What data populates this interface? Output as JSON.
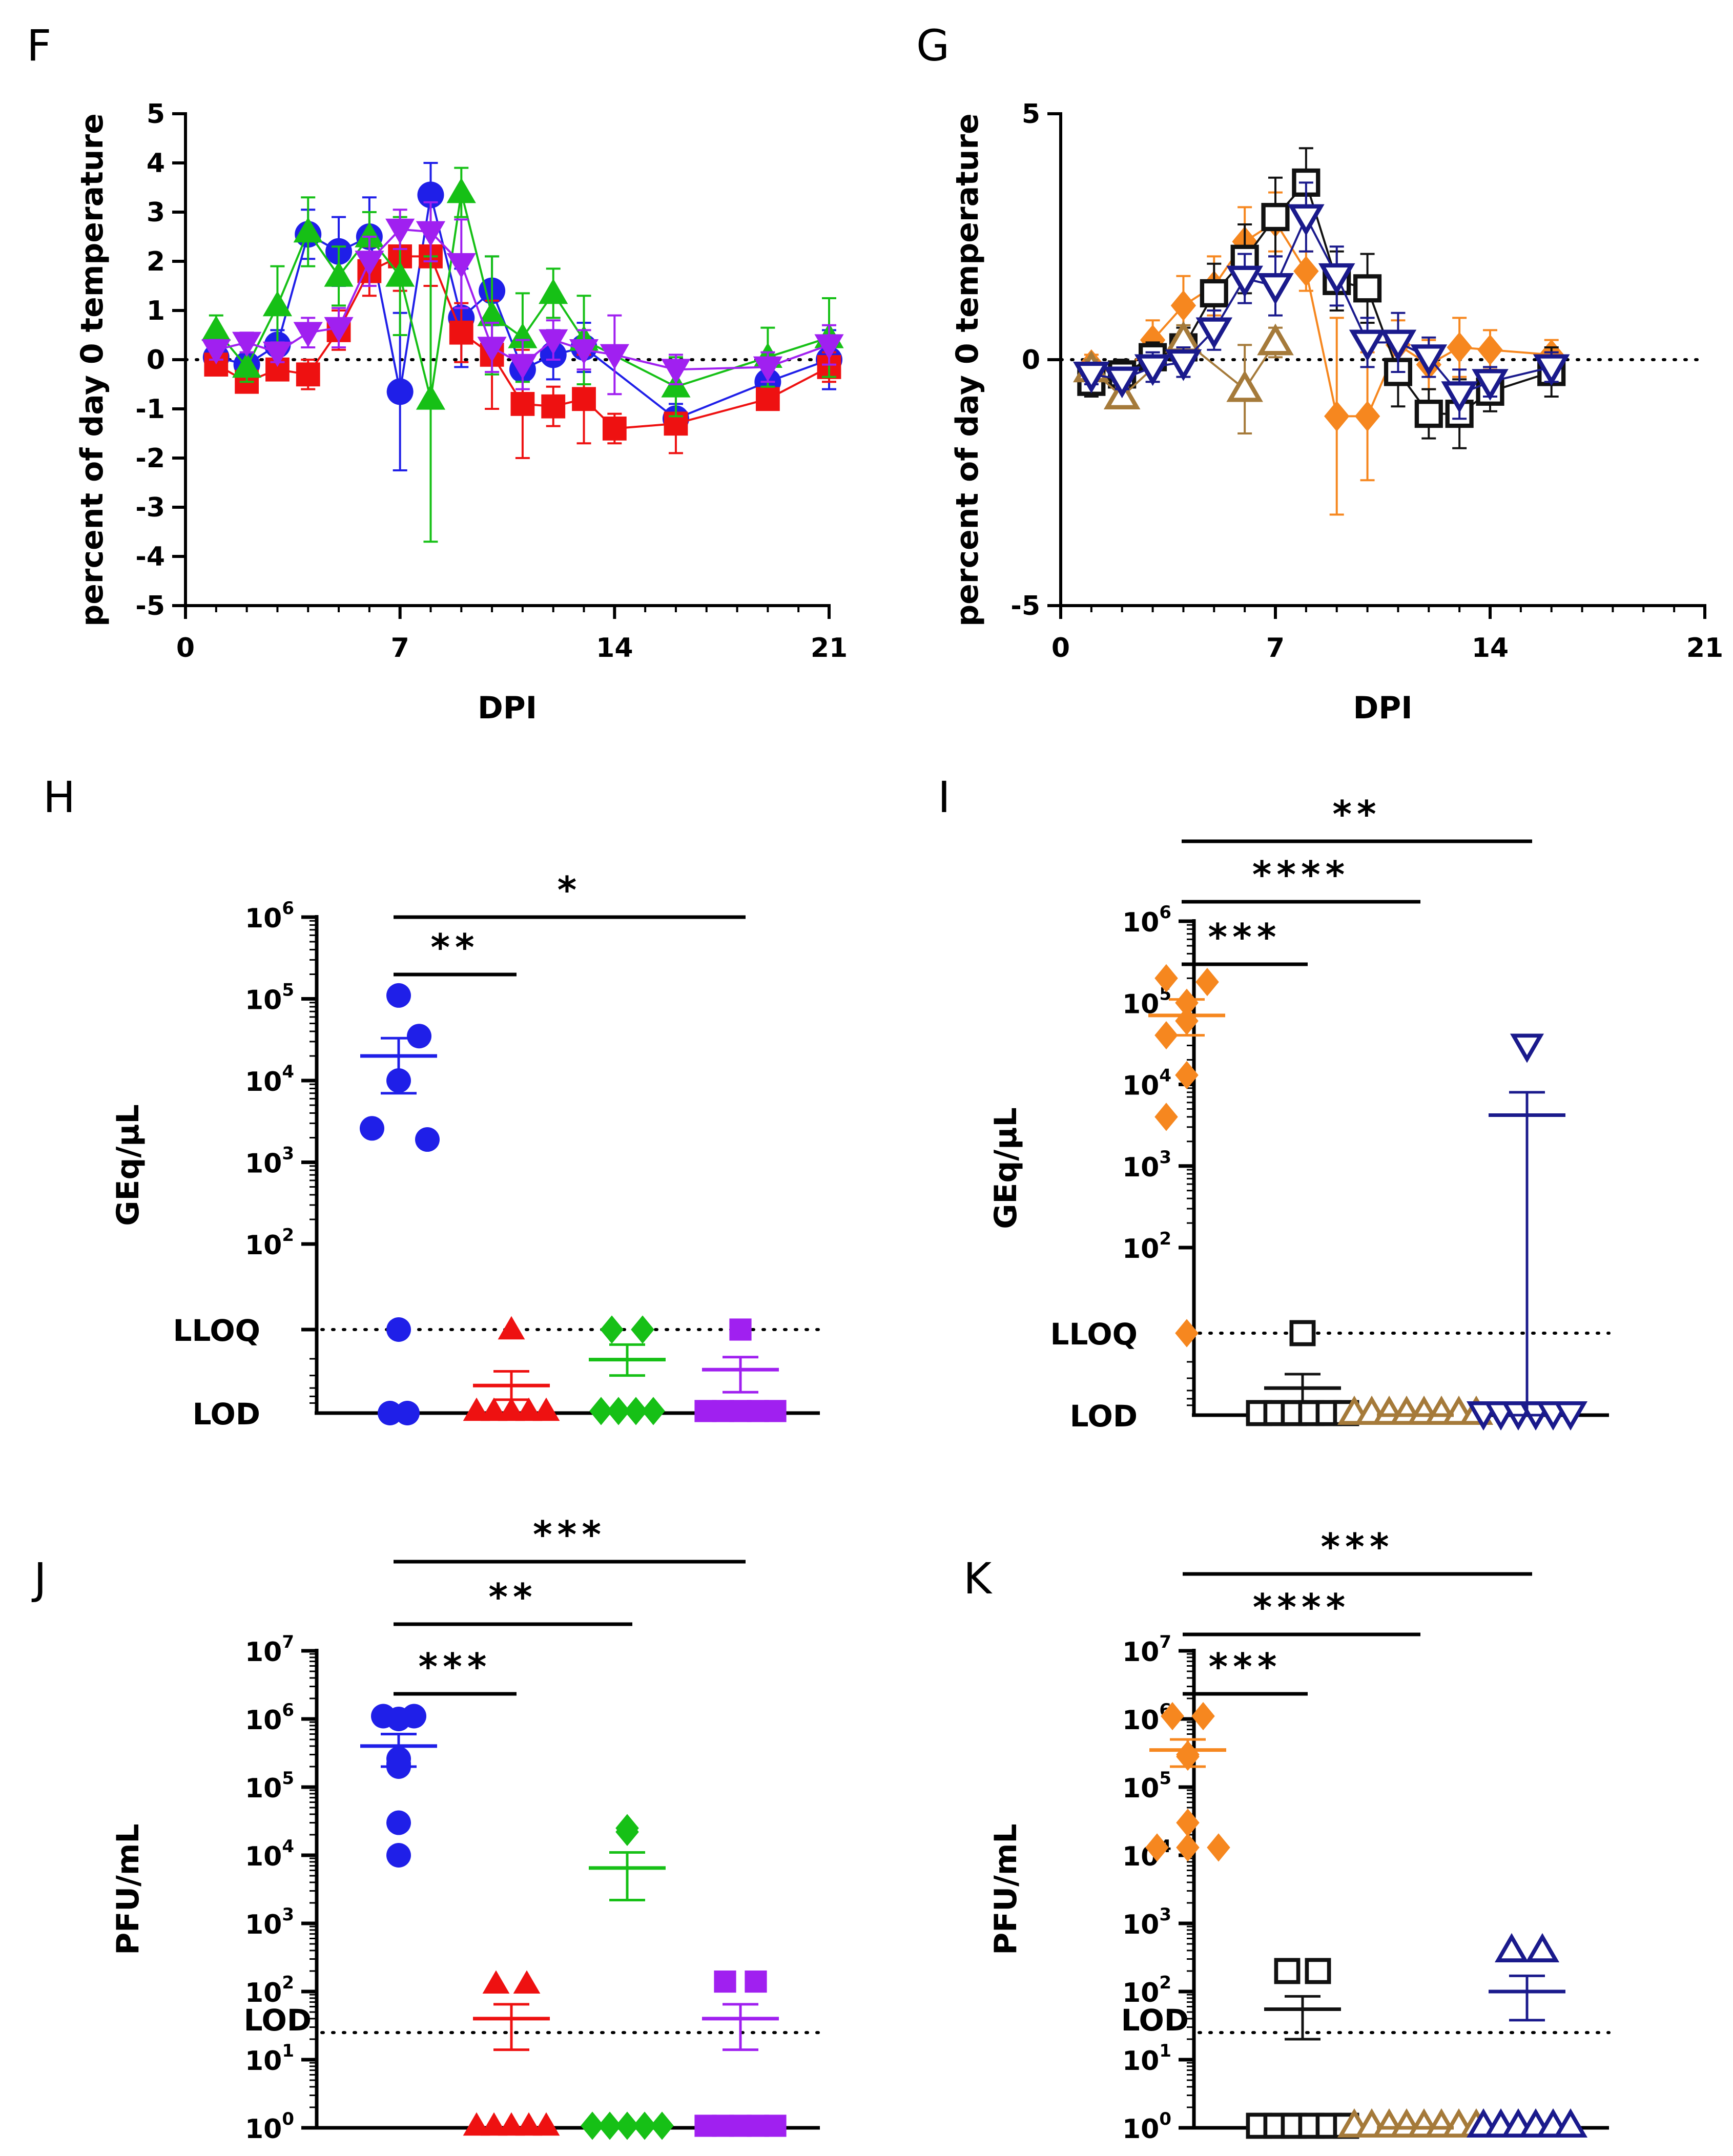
{
  "colors": {
    "blue": "#1f1fe8",
    "red": "#ee1111",
    "green": "#16c016",
    "purple": "#a020f0",
    "orange": "#f6871f",
    "black": "#111111",
    "brown": "#a57a3a",
    "navy": "#1a1a8c"
  },
  "chart_data": [
    {
      "panel": "F",
      "type": "line",
      "ylabel": "percent of day 0 temperature",
      "xlabel": "DPI",
      "xlim": [
        0,
        21
      ],
      "ylim": [
        -5,
        5
      ],
      "x_ticks": [
        "0",
        "7",
        "14",
        "21"
      ],
      "y_ticks": [
        "-5",
        "-4",
        "-3",
        "-2",
        "-1",
        "0",
        "1",
        "2",
        "3",
        "4",
        "5"
      ],
      "reference_line": 0,
      "series": [
        {
          "name": "blue circle",
          "color": "blue",
          "marker": "circle-filled",
          "x": [
            1,
            2,
            3,
            4,
            5,
            6,
            7,
            8,
            9,
            10,
            11,
            12,
            13,
            16,
            19,
            21
          ],
          "y": [
            0.05,
            -0.1,
            0.3,
            2.55,
            2.2,
            2.5,
            -0.65,
            3.35,
            0.85,
            1.4,
            -0.2,
            0.1,
            0.25,
            -1.2,
            -0.45,
            0.0
          ],
          "err": [
            0.3,
            0.4,
            0.3,
            0.5,
            0.7,
            0.8,
            1.6,
            0.65,
            1.0,
            0.7,
            0.5,
            0.5,
            0.5,
            0.3,
            0.4,
            0.6
          ]
        },
        {
          "name": "red square",
          "color": "red",
          "marker": "square-filled",
          "x": [
            1,
            2,
            3,
            4,
            5,
            6,
            7,
            8,
            9,
            10,
            11,
            12,
            13,
            14,
            16,
            19,
            21
          ],
          "y": [
            -0.1,
            -0.45,
            -0.2,
            -0.3,
            0.6,
            1.8,
            2.1,
            2.1,
            0.55,
            0.1,
            -0.9,
            -0.95,
            -0.8,
            -1.4,
            -1.3,
            -0.8,
            -0.15
          ],
          "err": [
            0.2,
            0.2,
            0.2,
            0.3,
            0.4,
            0.5,
            0.7,
            0.6,
            0.6,
            1.1,
            1.1,
            0.4,
            0.9,
            0.3,
            0.6,
            0.2,
            0.3
          ]
        },
        {
          "name": "green triangle",
          "color": "green",
          "marker": "triangle-up-filled",
          "x": [
            1,
            2,
            3,
            4,
            5,
            6,
            7,
            8,
            9,
            10,
            11,
            12,
            13,
            16,
            19,
            21
          ],
          "y": [
            0.6,
            -0.15,
            1.1,
            2.6,
            1.7,
            2.5,
            1.7,
            -0.8,
            3.4,
            0.9,
            0.45,
            1.35,
            0.4,
            -0.55,
            0.05,
            0.45
          ],
          "err": [
            0.3,
            0.3,
            0.8,
            0.7,
            0.6,
            0.5,
            1.2,
            2.9,
            0.5,
            1.2,
            0.9,
            0.5,
            0.9,
            0.6,
            0.6,
            0.8
          ]
        },
        {
          "name": "purple triangle",
          "color": "purple",
          "marker": "triangle-down-filled",
          "x": [
            1,
            2,
            3,
            4,
            5,
            6,
            7,
            8,
            9,
            10,
            11,
            12,
            13,
            14,
            16,
            19,
            21
          ],
          "y": [
            0.2,
            0.35,
            0.15,
            0.55,
            0.65,
            2.0,
            2.65,
            2.6,
            1.95,
            0.25,
            -0.1,
            0.4,
            0.2,
            0.1,
            -0.2,
            -0.15,
            0.3
          ],
          "err": [
            0.2,
            0.2,
            0.2,
            0.3,
            0.4,
            0.5,
            0.4,
            0.6,
            0.9,
            0.5,
            0.5,
            0.4,
            0.4,
            0.8,
            0.3,
            0.3,
            0.4
          ]
        }
      ]
    },
    {
      "panel": "G",
      "type": "line",
      "ylabel": "percent of day 0 temperature",
      "xlabel": "DPI",
      "xlim": [
        0,
        21
      ],
      "ylim": [
        -5,
        5
      ],
      "x_ticks": [
        "0",
        "7",
        "14",
        "21"
      ],
      "y_ticks": [
        "-5",
        "0",
        "5"
      ],
      "reference_line": 0,
      "series": [
        {
          "name": "orange diamond",
          "color": "orange",
          "marker": "diamond-filled",
          "x": [
            1,
            2,
            3,
            4,
            5,
            6,
            7,
            8,
            9,
            10,
            11,
            12,
            13,
            14,
            16
          ],
          "y": [
            -0.1,
            -0.35,
            0.4,
            1.1,
            1.5,
            2.4,
            2.8,
            1.8,
            -1.15,
            -1.15,
            0.3,
            -0.1,
            0.25,
            0.2,
            0.1
          ],
          "err": [
            0.2,
            0.3,
            0.4,
            0.6,
            0.6,
            0.7,
            0.6,
            0.4,
            2.0,
            1.3,
            0.5,
            0.5,
            0.6,
            0.4,
            0.3
          ]
        },
        {
          "name": "black square",
          "color": "black",
          "marker": "square-open",
          "x": [
            1,
            2,
            3,
            4,
            5,
            6,
            7,
            8,
            9,
            10,
            11,
            12,
            13,
            14,
            16
          ],
          "y": [
            -0.45,
            -0.3,
            0.05,
            0.25,
            1.35,
            2.05,
            2.9,
            3.6,
            1.6,
            1.45,
            -0.25,
            -1.1,
            -1.1,
            -0.65,
            -0.25
          ],
          "err": [
            0.3,
            0.3,
            0.3,
            0.4,
            0.6,
            0.7,
            0.8,
            0.7,
            0.6,
            0.7,
            0.7,
            0.5,
            0.7,
            0.4,
            0.5
          ]
        },
        {
          "name": "brown triangle",
          "color": "brown",
          "marker": "triangle-up-open",
          "x": [
            1,
            2,
            4,
            6,
            7
          ],
          "y": [
            -0.2,
            -0.75,
            0.4,
            -0.6,
            0.35
          ],
          "err": [
            0.2,
            0.2,
            0.3,
            0.9,
            0.3
          ]
        },
        {
          "name": "navy triangle",
          "color": "navy",
          "marker": "triangle-down-open",
          "x": [
            1,
            2,
            3,
            4,
            5,
            6,
            7,
            8,
            9,
            10,
            11,
            12,
            13,
            14,
            16
          ],
          "y": [
            -0.3,
            -0.4,
            -0.15,
            -0.05,
            0.6,
            1.65,
            1.5,
            2.9,
            1.7,
            0.35,
            0.35,
            0.05,
            -0.7,
            -0.45,
            -0.15
          ],
          "err": [
            0.2,
            0.2,
            0.3,
            0.3,
            0.4,
            0.5,
            0.6,
            0.7,
            0.6,
            0.5,
            0.6,
            0.4,
            0.5,
            0.3,
            0.3
          ]
        }
      ]
    },
    {
      "panel": "H",
      "type": "scatter",
      "ylabel": "GEq/µL",
      "scale": "log",
      "y_ticks": [
        {
          "base": "10",
          "exp": "2"
        },
        {
          "base": "10",
          "exp": "3"
        },
        {
          "base": "10",
          "exp": "4"
        },
        {
          "base": "10",
          "exp": "5"
        },
        {
          "base": "10",
          "exp": "6"
        }
      ],
      "level_labels": [
        "LLOQ",
        "LOD"
      ],
      "groups": [
        {
          "color": "blue",
          "marker": "circle-filled",
          "points": [
            110000,
            35000,
            10000,
            2600,
            1900,
            "LLOQ",
            "LOD",
            "LOD"
          ],
          "mean": 20000,
          "sem": [
            7000,
            33000
          ]
        },
        {
          "color": "red",
          "marker": "triangle-up-filled",
          "points": [
            "LLOQ",
            "LOD",
            "LOD",
            "LOD",
            "LOD",
            "LOD"
          ],
          "mean_frac": 0.33,
          "sem_frac": [
            0.16,
            0.5
          ]
        },
        {
          "color": "green",
          "marker": "diamond-filled",
          "points": [
            "LLOQ",
            "LLOQ",
            "LOD",
            "LOD",
            "LOD",
            "LOD"
          ],
          "mean_frac": 0.64,
          "sem_frac": [
            0.45,
            0.82
          ]
        },
        {
          "color": "purple",
          "marker": "square-filled",
          "points": [
            "LLOQ",
            "LOD",
            "LOD",
            "LOD",
            "LOD",
            "LOD"
          ],
          "mean_frac": 0.52,
          "sem_frac": [
            0.25,
            0.67
          ]
        }
      ],
      "significance": [
        {
          "from": 0,
          "to": 1,
          "label": "**"
        },
        {
          "from": 0,
          "to": 3,
          "label": "*"
        }
      ]
    },
    {
      "panel": "I",
      "type": "scatter",
      "ylabel": "GEq/µL",
      "scale": "log",
      "y_ticks": [
        {
          "base": "10",
          "exp": "2"
        },
        {
          "base": "10",
          "exp": "3"
        },
        {
          "base": "10",
          "exp": "4"
        },
        {
          "base": "10",
          "exp": "5"
        },
        {
          "base": "10",
          "exp": "6"
        }
      ],
      "level_labels": [
        "LLOQ",
        "LOD"
      ],
      "groups": [
        {
          "color": "orange",
          "marker": "diamond-filled",
          "points": [
            200000,
            180000,
            100000,
            60000,
            40000,
            13000,
            4000,
            "LLOQ"
          ],
          "mean": 70000,
          "sem": [
            40000,
            110000
          ]
        },
        {
          "color": "black",
          "marker": "square-open",
          "points": [
            "LLOQ",
            "LOD",
            "LOD",
            "LOD",
            "LOD",
            "LOD",
            "LOD"
          ],
          "mean_frac": 0.33,
          "sem_frac": [
            0.15,
            0.5
          ]
        },
        {
          "color": "brown",
          "marker": "triangle-up-open",
          "points": [
            "LOD",
            "LOD",
            "LOD",
            "LOD",
            "LOD",
            "LOD",
            "LOD",
            "LOD"
          ],
          "mean_frac": 0.0,
          "sem_frac": [
            0.0,
            0.0
          ]
        },
        {
          "color": "navy",
          "marker": "triangle-down-open",
          "points": [
            30000,
            "LOD",
            "LOD",
            "LOD",
            "LOD",
            "LOD",
            "LOD"
          ],
          "mean": 4200,
          "sem": [
            "LOD",
            8000
          ]
        }
      ],
      "significance": [
        {
          "from": 0,
          "to": 1,
          "label": "***"
        },
        {
          "from": 0,
          "to": 2,
          "label": "****"
        },
        {
          "from": 0,
          "to": 3,
          "label": "**"
        }
      ]
    },
    {
      "panel": "J",
      "type": "scatter",
      "ylabel": "PFU/mL",
      "scale": "log",
      "y_ticks": [
        {
          "base": "10",
          "exp": "0"
        },
        {
          "base": "10",
          "exp": "1"
        },
        {
          "base": "10",
          "exp": "2"
        },
        {
          "base": "10",
          "exp": "3"
        },
        {
          "base": "10",
          "exp": "4"
        },
        {
          "base": "10",
          "exp": "5"
        },
        {
          "base": "10",
          "exp": "6"
        },
        {
          "base": "10",
          "exp": "7"
        }
      ],
      "level_labels": [
        "LOD"
      ],
      "lod_value": 25,
      "groups": [
        {
          "color": "blue",
          "marker": "circle-filled",
          "points": [
            1100000,
            1100000,
            1000000,
            260000,
            220000,
            200000,
            30000,
            10000
          ],
          "mean": 400000,
          "sem": [
            200000,
            600000
          ]
        },
        {
          "color": "red",
          "marker": "triangle-up-filled",
          "points": [
            130,
            130,
            1,
            1,
            1,
            1,
            1
          ],
          "mean": 40,
          "sem": [
            14,
            65
          ]
        },
        {
          "color": "green",
          "marker": "diamond-filled",
          "points": [
            25000,
            22000,
            1,
            1,
            1,
            1,
            1
          ],
          "mean": 6500,
          "sem": [
            2200,
            11000
          ]
        },
        {
          "color": "purple",
          "marker": "square-filled",
          "points": [
            140,
            140,
            1,
            1,
            1,
            1,
            1
          ],
          "mean": 40,
          "sem": [
            14,
            65
          ]
        }
      ],
      "significance": [
        {
          "from": 0,
          "to": 1,
          "label": "***"
        },
        {
          "from": 0,
          "to": 2,
          "label": "**"
        },
        {
          "from": 0,
          "to": 3,
          "label": "***"
        }
      ]
    },
    {
      "panel": "K",
      "type": "scatter",
      "ylabel": "PFU/mL",
      "scale": "log",
      "y_ticks": [
        {
          "base": "10",
          "exp": "0"
        },
        {
          "base": "10",
          "exp": "1"
        },
        {
          "base": "10",
          "exp": "2"
        },
        {
          "base": "10",
          "exp": "3"
        },
        {
          "base": "10",
          "exp": "4"
        },
        {
          "base": "10",
          "exp": "5"
        },
        {
          "base": "10",
          "exp": "6"
        },
        {
          "base": "10",
          "exp": "7"
        }
      ],
      "level_labels": [
        "LOD"
      ],
      "lod_value": 25,
      "groups": [
        {
          "color": "orange",
          "marker": "diamond-filled",
          "points": [
            1100000,
            1100000,
            300000,
            280000,
            30000,
            13000,
            13000,
            13000
          ],
          "mean": 350000,
          "sem": [
            200000,
            500000
          ]
        },
        {
          "color": "black",
          "marker": "square-open",
          "points": [
            200,
            200,
            1,
            1,
            1,
            1,
            1,
            1
          ],
          "mean": 55,
          "sem": [
            20,
            85
          ]
        },
        {
          "color": "brown",
          "marker": "triangle-up-open",
          "points": [
            1,
            1,
            1,
            1,
            1,
            1,
            1,
            1
          ],
          "mean": 1,
          "sem": [
            1,
            1
          ]
        },
        {
          "color": "navy",
          "marker": "triangle-up-open",
          "points": [
            400,
            400,
            1,
            1,
            1,
            1,
            1,
            1
          ],
          "mean": 100,
          "sem": [
            38,
            170
          ]
        }
      ],
      "significance": [
        {
          "from": 0,
          "to": 1,
          "label": "***"
        },
        {
          "from": 0,
          "to": 2,
          "label": "****"
        },
        {
          "from": 0,
          "to": 3,
          "label": "***"
        }
      ]
    }
  ]
}
